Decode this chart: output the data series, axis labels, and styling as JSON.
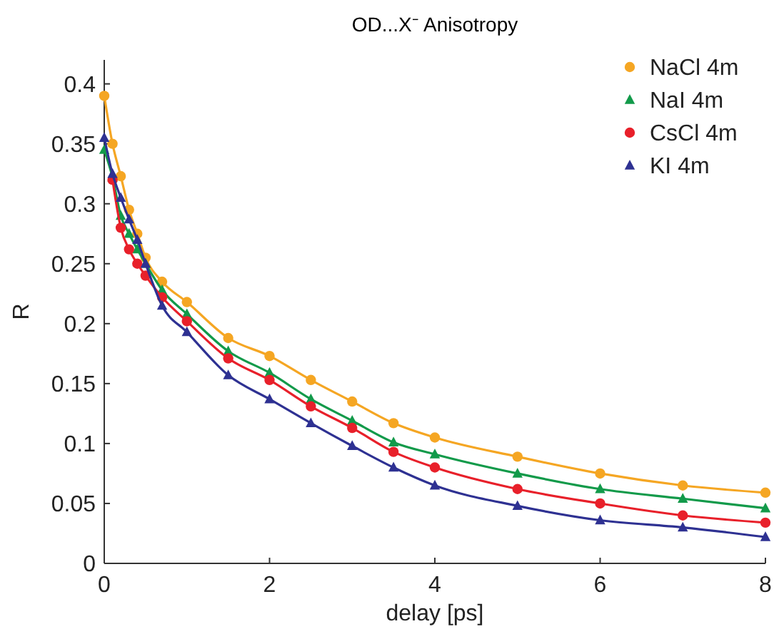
{
  "chart_data": {
    "type": "line",
    "title": "OD...X⁻ Anisotropy",
    "xlabel": "delay [ps]",
    "ylabel": "R",
    "x": [
      0,
      0.1,
      0.2,
      0.3,
      0.4,
      0.5,
      0.7,
      1,
      1.5,
      2,
      2.5,
      3,
      3.5,
      4,
      5,
      6,
      7,
      8
    ],
    "series": [
      {
        "name": "NaCl 4m",
        "color": "#f5a623",
        "marker": "circle",
        "values": [
          0.39,
          0.35,
          0.323,
          0.295,
          0.275,
          0.255,
          0.235,
          0.218,
          0.188,
          0.173,
          0.153,
          0.135,
          0.117,
          0.105,
          0.089,
          0.075,
          0.065,
          0.059
        ]
      },
      {
        "name": "NaI 4m",
        "color": "#129a4a",
        "marker": "triangle",
        "values": [
          0.345,
          0.322,
          0.29,
          0.275,
          0.262,
          0.25,
          0.228,
          0.208,
          0.177,
          0.159,
          0.137,
          0.119,
          0.101,
          0.091,
          0.075,
          0.062,
          0.054,
          0.046
        ]
      },
      {
        "name": "CsCl 4m",
        "color": "#e8202a",
        "marker": "circle",
        "values": [
          null,
          0.32,
          0.28,
          0.262,
          0.25,
          0.24,
          0.222,
          0.202,
          0.171,
          0.153,
          0.131,
          0.113,
          0.093,
          0.08,
          0.062,
          0.05,
          0.04,
          0.034
        ]
      },
      {
        "name": "KI 4m",
        "color": "#2e3192",
        "marker": "triangle",
        "values": [
          0.355,
          0.325,
          0.305,
          0.287,
          0.27,
          0.25,
          0.215,
          0.193,
          0.157,
          0.137,
          0.117,
          0.098,
          0.08,
          0.065,
          0.048,
          0.036,
          0.03,
          0.022
        ]
      }
    ],
    "xlim": [
      0,
      8
    ],
    "xticks": [
      0,
      2,
      4,
      6,
      8
    ],
    "ylim": [
      0,
      0.42
    ],
    "yticks": [
      0,
      0.05,
      0.1,
      0.15,
      0.2,
      0.25,
      0.3,
      0.35,
      0.4
    ],
    "legend": "top right",
    "grid": false
  }
}
